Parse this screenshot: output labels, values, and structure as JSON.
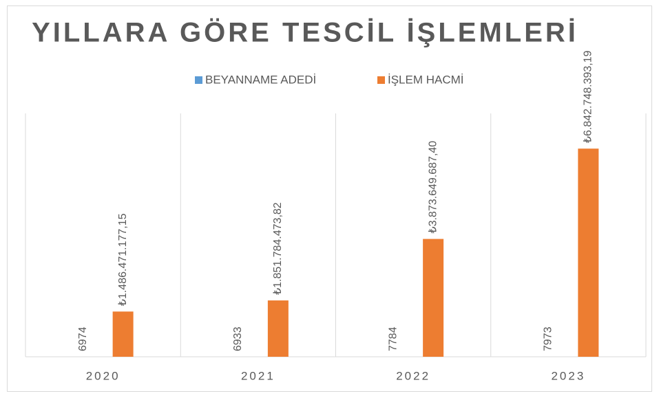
{
  "chart_data": {
    "type": "bar",
    "title": "YILLARA GÖRE TESCİL İŞLEMLERİ",
    "categories": [
      "2020",
      "2021",
      "2022",
      "2023"
    ],
    "series": [
      {
        "name": "BEYANNAME ADEDİ",
        "color": "#5b9bd5",
        "values": [
          6974,
          6933,
          7784,
          7973
        ]
      },
      {
        "name": "İŞLEM HACMİ",
        "color": "#ed7d31",
        "values": [
          1486471177.15,
          1851784473.82,
          3873649687.4,
          6842748393.19
        ],
        "value_labels": [
          "₺1.486.471.177,15",
          "₺1.851.784.473,82",
          "₺3.873.649.687,40",
          "₺6.842.748.393,19"
        ]
      }
    ],
    "ylim": [
      0,
      8000000000
    ],
    "grid": true,
    "legend": "top"
  }
}
